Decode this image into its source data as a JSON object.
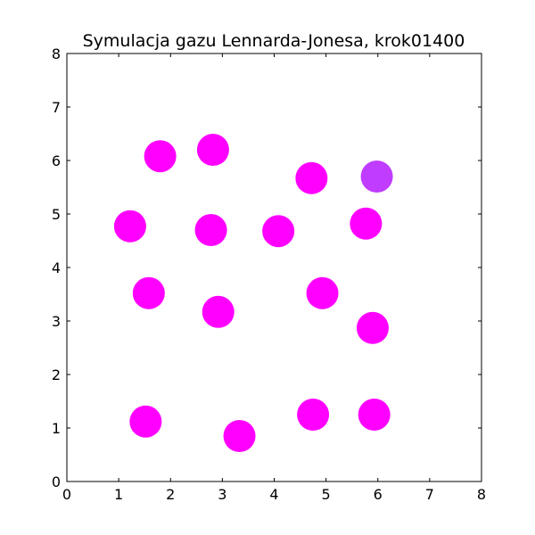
{
  "chart_data": {
    "type": "scatter",
    "title": "Symulacja gazu Lennarda-Jonesa, krok01400",
    "xlabel": "",
    "ylabel": "",
    "xlim": [
      0,
      8
    ],
    "ylim": [
      0,
      8
    ],
    "xticks": [
      "0",
      "1",
      "2",
      "3",
      "4",
      "5",
      "6",
      "7",
      "8"
    ],
    "yticks": [
      "0",
      "1",
      "2",
      "3",
      "4",
      "5",
      "6",
      "7",
      "8"
    ],
    "grid": false,
    "legend": "none",
    "colors": {
      "particle": "#ff00ff",
      "highlight": "#c03cff",
      "frame": "#000000",
      "background": "#ffffff"
    },
    "points": [
      {
        "x": 1.8,
        "y": 6.08,
        "color": "particle"
      },
      {
        "x": 2.82,
        "y": 6.2,
        "color": "particle"
      },
      {
        "x": 4.72,
        "y": 5.67,
        "color": "particle"
      },
      {
        "x": 5.98,
        "y": 5.7,
        "color": "highlight"
      },
      {
        "x": 1.22,
        "y": 4.77,
        "color": "particle"
      },
      {
        "x": 2.78,
        "y": 4.7,
        "color": "particle"
      },
      {
        "x": 4.08,
        "y": 4.68,
        "color": "particle"
      },
      {
        "x": 5.77,
        "y": 4.82,
        "color": "particle"
      },
      {
        "x": 1.58,
        "y": 3.52,
        "color": "particle"
      },
      {
        "x": 2.92,
        "y": 3.17,
        "color": "particle"
      },
      {
        "x": 4.93,
        "y": 3.52,
        "color": "particle"
      },
      {
        "x": 5.9,
        "y": 2.87,
        "color": "particle"
      },
      {
        "x": 1.52,
        "y": 1.12,
        "color": "particle"
      },
      {
        "x": 3.33,
        "y": 0.85,
        "color": "particle"
      },
      {
        "x": 4.75,
        "y": 1.25,
        "color": "particle"
      },
      {
        "x": 5.93,
        "y": 1.25,
        "color": "particle"
      }
    ]
  }
}
